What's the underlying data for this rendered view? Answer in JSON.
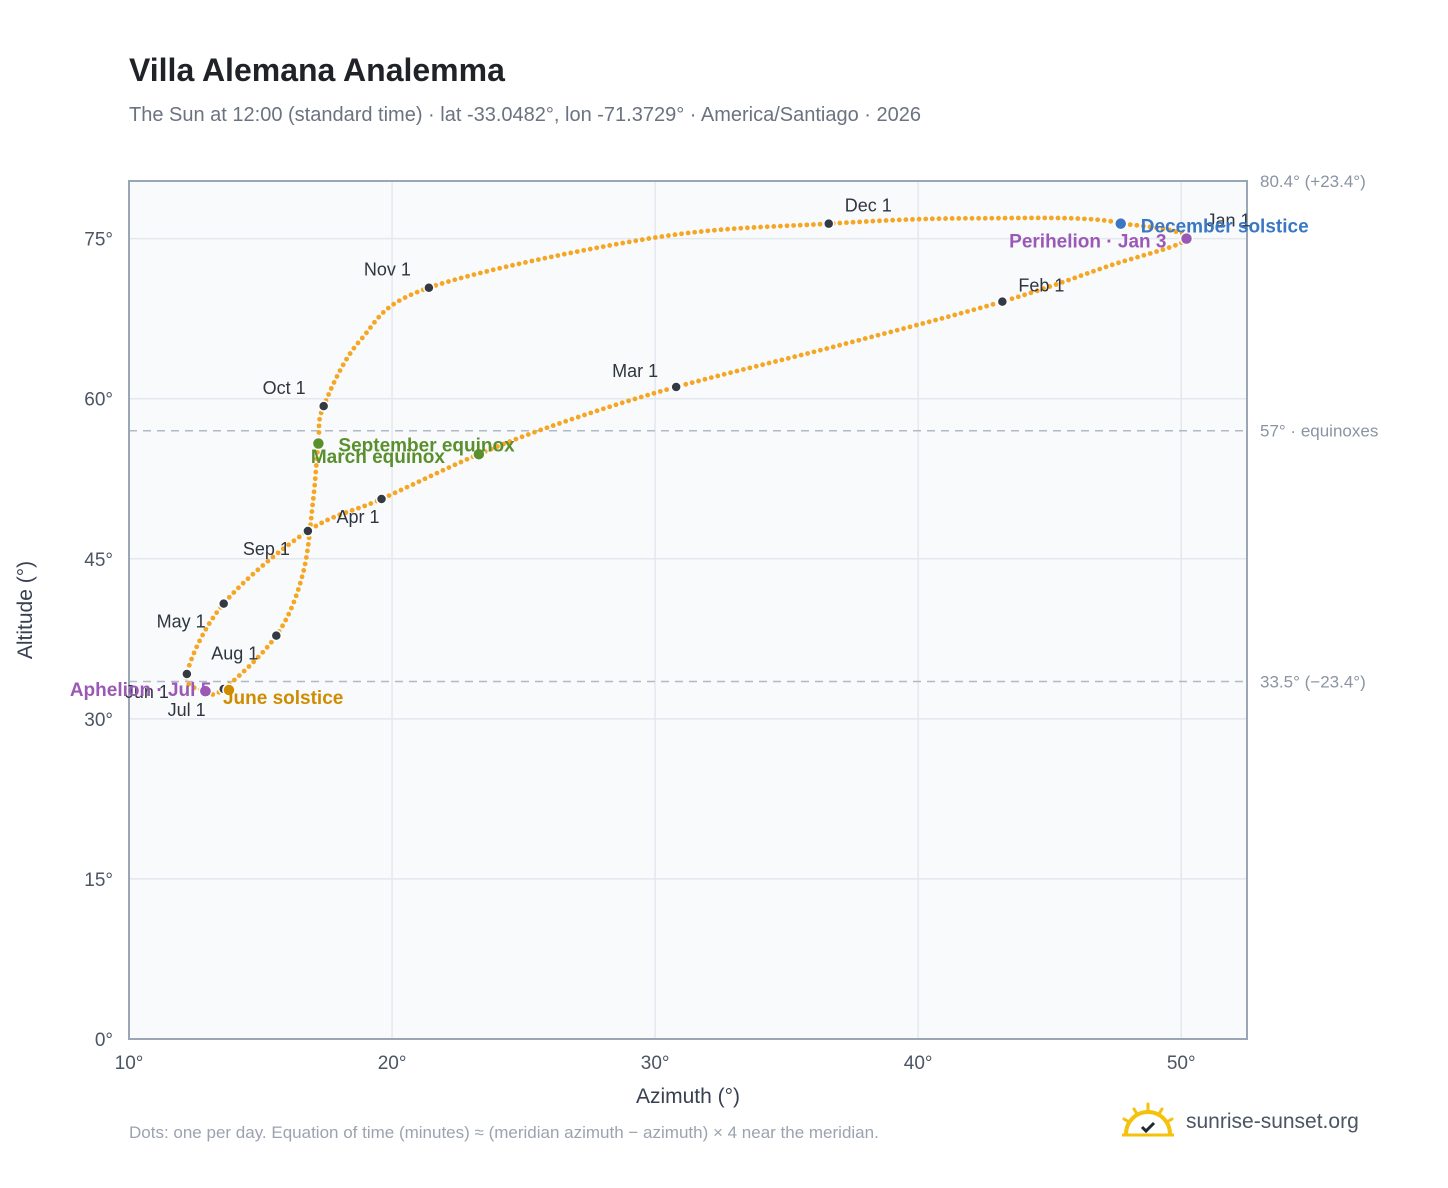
{
  "title": "Villa Alemana Analemma",
  "subtitle": "The Sun at 12:00 (standard time) · lat -33.0482°, lon -71.3729° · America/Santiago · 2026",
  "footnote": "Dots: one per day. Equation of time (minutes) ≈ (meridian azimuth − azimuth) × 4 near the meridian.",
  "brand": {
    "name": "sunrise-sunset.org",
    "icon": "sun-logo-icon"
  },
  "colors": {
    "curve": "#f5a623",
    "month_marker": "#333a44",
    "equinox": "#5a8f2e",
    "june_solstice": "#d08c00",
    "december_solstice": "#3b78c3",
    "apsis": "#9b59b6",
    "reference_line": "#b0bac6",
    "plot_bg": "#f8fafc"
  },
  "chart_data": {
    "type": "scatter",
    "title": "Villa Alemana Analemma",
    "xlabel": "Azimuth (°)",
    "ylabel": "Altitude (°)",
    "xlim": [
      10,
      52.5
    ],
    "ylim": [
      0,
      80.4
    ],
    "x_ticks": [
      10,
      20,
      30,
      40,
      50
    ],
    "y_ticks": [
      0,
      15,
      30,
      45,
      60,
      75
    ],
    "x_tick_labels": [
      "10°",
      "20°",
      "30°",
      "40°",
      "50°"
    ],
    "y_tick_labels": [
      "0°",
      "15°",
      "30°",
      "45°",
      "60°",
      "75°"
    ],
    "grid": true,
    "reference_lines": [
      {
        "y": 80.4,
        "label": "80.4° (+23.4°)"
      },
      {
        "y": 57.0,
        "label": "57° · equinoxes"
      },
      {
        "y": 33.5,
        "label": "33.5° (−23.4°)"
      }
    ],
    "series": [
      {
        "path": [
          [
            50.2,
            75.0
          ],
          [
            47.2,
            72.4
          ],
          [
            43.2,
            69.1
          ],
          [
            37.0,
            65.0
          ],
          [
            30.8,
            61.1
          ],
          [
            26.5,
            57.8
          ],
          [
            23.3,
            54.8
          ],
          [
            19.6,
            50.6
          ],
          [
            16.8,
            47.6
          ],
          [
            13.6,
            40.8
          ],
          [
            12.2,
            34.2
          ],
          [
            12.9,
            32.6
          ],
          [
            13.6,
            32.8
          ],
          [
            15.6,
            37.8
          ],
          [
            16.6,
            43.5
          ],
          [
            17.0,
            50.5
          ],
          [
            17.2,
            56.0
          ],
          [
            17.4,
            59.3
          ],
          [
            18.8,
            65.5
          ],
          [
            21.4,
            70.4
          ],
          [
            30.0,
            75.1
          ],
          [
            36.6,
            76.4
          ],
          [
            42.0,
            76.9
          ],
          [
            47.7,
            76.4
          ],
          [
            50.2,
            75.0
          ]
        ]
      }
    ],
    "month_markers": [
      {
        "label": "Jan 1",
        "x": 50.2,
        "y": 75.0
      },
      {
        "label": "Feb 1",
        "x": 43.2,
        "y": 69.1
      },
      {
        "label": "Mar 1",
        "x": 30.8,
        "y": 61.1
      },
      {
        "label": "Apr 1",
        "x": 19.6,
        "y": 50.6
      },
      {
        "label": "May 1",
        "x": 13.6,
        "y": 40.8
      },
      {
        "label": "Jun 1",
        "x": 12.2,
        "y": 34.2
      },
      {
        "label": "Jul 1",
        "x": 13.6,
        "y": 32.8
      },
      {
        "label": "Aug 1",
        "x": 15.6,
        "y": 37.8
      },
      {
        "label": "Sep 1",
        "x": 16.8,
        "y": 47.6
      },
      {
        "label": "Oct 1",
        "x": 17.4,
        "y": 59.3
      },
      {
        "label": "Nov 1",
        "x": 21.4,
        "y": 70.4
      },
      {
        "label": "Dec 1",
        "x": 36.6,
        "y": 76.4
      }
    ],
    "events": [
      {
        "label": "March equinox",
        "x": 23.3,
        "y": 54.8,
        "kind": "equinox"
      },
      {
        "label": "September equinox",
        "x": 17.2,
        "y": 55.8,
        "kind": "equinox"
      },
      {
        "label": "June solstice",
        "x": 13.8,
        "y": 32.7,
        "kind": "june_solstice"
      },
      {
        "label": "December solstice",
        "x": 47.7,
        "y": 76.4,
        "kind": "december_solstice"
      },
      {
        "label": "Perihelion · Jan 3",
        "x": 50.2,
        "y": 75.0,
        "kind": "apsis"
      },
      {
        "label": "Aphelion · Jul 5",
        "x": 12.9,
        "y": 32.6,
        "kind": "apsis"
      }
    ]
  }
}
